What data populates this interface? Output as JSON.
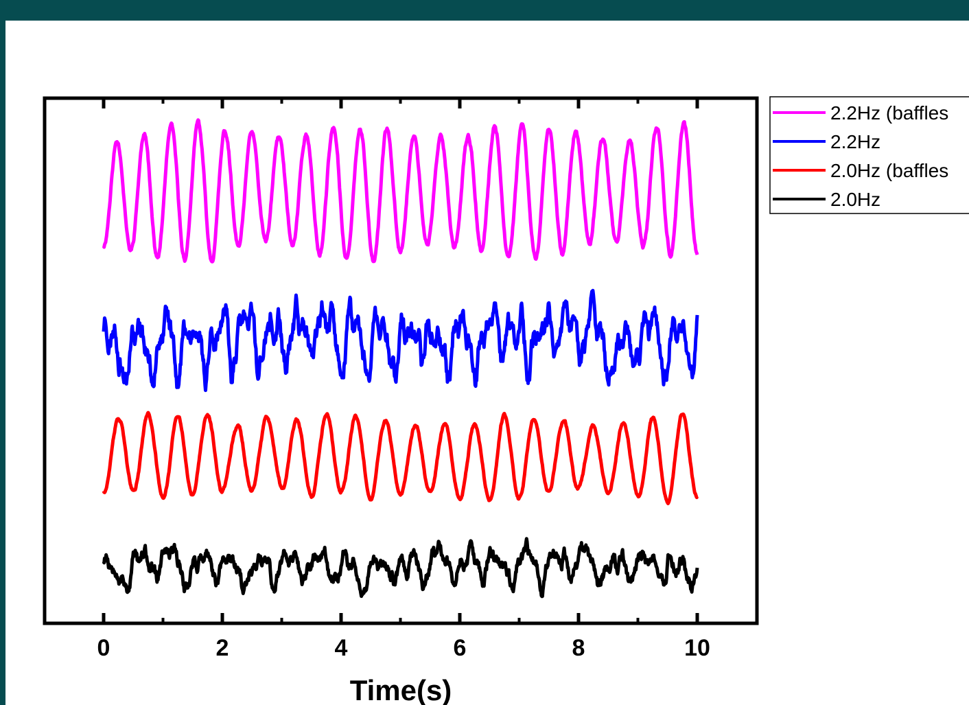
{
  "colors": {
    "frame": "#064c50",
    "background": "#ffffff",
    "axis": "#000000"
  },
  "chart_data": {
    "type": "line",
    "title": "",
    "xlabel": "Time(s)",
    "ylabel": "",
    "xlim": [
      0,
      10
    ],
    "x_ticks": [
      0,
      2,
      4,
      6,
      8,
      10
    ],
    "x_tick_labels": [
      "0",
      "2",
      "4",
      "6",
      "8",
      "10"
    ],
    "y_ticks_shown": false,
    "grid": false,
    "legend_position": "outside-top-right",
    "series": [
      {
        "name": "2.2Hz (baffles",
        "color": "#ff00ff",
        "offset": 3,
        "frequency_hz": 2.2,
        "amplitude": 0.95,
        "jitter": 0.08,
        "seed": 11
      },
      {
        "name": "2.2Hz",
        "color": "#0000ff",
        "offset": 2,
        "frequency_hz": 2.2,
        "amplitude": 0.55,
        "jitter": 0.35,
        "seed": 23
      },
      {
        "name": "2.0Hz (baffles",
        "color": "#ff0000",
        "offset": 1,
        "frequency_hz": 2.0,
        "amplitude": 0.8,
        "jitter": 0.06,
        "seed": 37
      },
      {
        "name": "2.0Hz",
        "color": "#000000",
        "offset": 0,
        "frequency_hz": 2.0,
        "amplitude": 0.45,
        "jitter": 0.3,
        "seed": 53
      }
    ]
  }
}
